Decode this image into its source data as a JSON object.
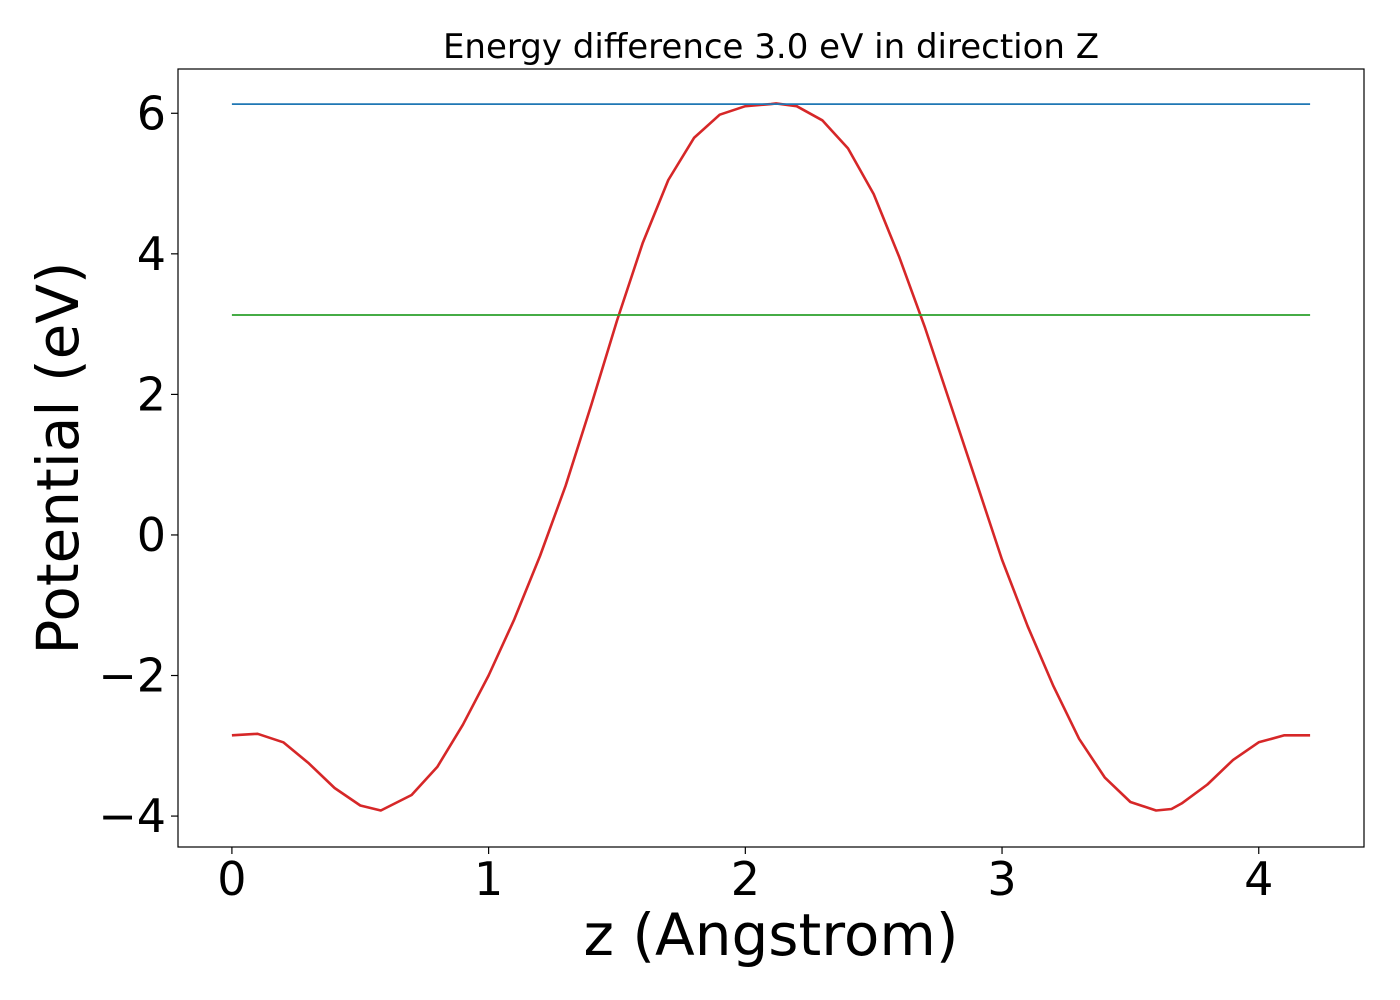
{
  "chart_data": {
    "type": "line",
    "title": "Energy difference 3.0 eV in direction Z",
    "xlabel": "z (Angstrom)",
    "ylabel": "Potential (eV)",
    "xlim": [
      -0.21,
      4.41
    ],
    "ylim": [
      -4.44,
      6.63
    ],
    "x_ticks": [
      0,
      1,
      2,
      3,
      4
    ],
    "x_tick_labels": [
      "0",
      "1",
      "2",
      "3",
      "4"
    ],
    "y_ticks": [
      -4,
      -2,
      0,
      2,
      4,
      6
    ],
    "y_tick_labels": [
      "−4",
      "−2",
      "0",
      "2",
      "4",
      "6"
    ],
    "grid": false,
    "legend": "none",
    "series": [
      {
        "color": "#d62728",
        "x": [
          0.0,
          0.1,
          0.2,
          0.3,
          0.4,
          0.5,
          0.58,
          0.7,
          0.8,
          0.9,
          1.0,
          1.1,
          1.2,
          1.3,
          1.4,
          1.5,
          1.6,
          1.7,
          1.8,
          1.9,
          2.0,
          2.1,
          2.12,
          2.2,
          2.3,
          2.4,
          2.5,
          2.6,
          2.7,
          2.8,
          2.9,
          3.0,
          3.1,
          3.2,
          3.3,
          3.4,
          3.5,
          3.6,
          3.66,
          3.7,
          3.8,
          3.9,
          4.0,
          4.1,
          4.2
        ],
        "y": [
          -2.85,
          -2.83,
          -2.95,
          -3.25,
          -3.6,
          -3.85,
          -3.92,
          -3.7,
          -3.3,
          -2.7,
          -2.0,
          -1.2,
          -0.3,
          0.7,
          1.85,
          3.05,
          4.15,
          5.05,
          5.65,
          5.98,
          6.1,
          6.13,
          6.14,
          6.1,
          5.9,
          5.5,
          4.85,
          3.95,
          2.95,
          1.85,
          0.75,
          -0.35,
          -1.3,
          -2.15,
          -2.9,
          -3.45,
          -3.8,
          -3.92,
          -3.9,
          -3.82,
          -3.55,
          -3.2,
          -2.95,
          -2.85,
          -2.85
        ]
      },
      {
        "color": "#1f77b4",
        "x": [
          0.0,
          4.2
        ],
        "y": [
          6.13,
          6.13
        ]
      },
      {
        "color": "#2ca02c",
        "x": [
          0.0,
          4.2
        ],
        "y": [
          3.13,
          3.13
        ]
      }
    ]
  }
}
